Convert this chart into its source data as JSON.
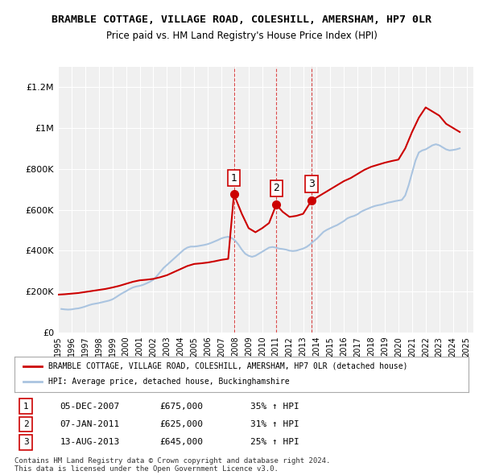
{
  "title": "BRAMBLE COTTAGE, VILLAGE ROAD, COLESHILL, AMERSHAM, HP7 0LR",
  "subtitle": "Price paid vs. HM Land Registry's House Price Index (HPI)",
  "background_color": "#ffffff",
  "plot_bg_color": "#f0f0f0",
  "grid_color": "#ffffff",
  "hpi_color": "#aac4e0",
  "price_color": "#cc0000",
  "x_start_year": 1995,
  "x_end_year": 2025,
  "ylim": [
    0,
    1300000
  ],
  "yticks": [
    0,
    200000,
    400000,
    600000,
    800000,
    1000000,
    1200000
  ],
  "ytick_labels": [
    "£0",
    "£200K",
    "£400K",
    "£600K",
    "£800K",
    "£1M",
    "£1.2M"
  ],
  "sales": [
    {
      "label": "1",
      "date": "05-DEC-2007",
      "year": 2007.92,
      "price": 675000,
      "pct": "35% ↑ HPI"
    },
    {
      "label": "2",
      "date": "07-JAN-2011",
      "year": 2011.03,
      "price": 625000,
      "pct": "31% ↑ HPI"
    },
    {
      "label": "3",
      "date": "13-AUG-2013",
      "year": 2013.62,
      "price": 645000,
      "pct": "25% ↑ HPI"
    }
  ],
  "legend_line1": "BRAMBLE COTTAGE, VILLAGE ROAD, COLESHILL, AMERSHAM, HP7 0LR (detached house)",
  "legend_line2": "HPI: Average price, detached house, Buckinghamshire",
  "footnote1": "Contains HM Land Registry data © Crown copyright and database right 2024.",
  "footnote2": "This data is licensed under the Open Government Licence v3.0.",
  "hpi_data": {
    "years": [
      1995.25,
      1995.5,
      1995.75,
      1996.0,
      1996.25,
      1996.5,
      1996.75,
      1997.0,
      1997.25,
      1997.5,
      1997.75,
      1998.0,
      1998.25,
      1998.5,
      1998.75,
      1999.0,
      1999.25,
      1999.5,
      1999.75,
      2000.0,
      2000.25,
      2000.5,
      2000.75,
      2001.0,
      2001.25,
      2001.5,
      2001.75,
      2002.0,
      2002.25,
      2002.5,
      2002.75,
      2003.0,
      2003.25,
      2003.5,
      2003.75,
      2004.0,
      2004.25,
      2004.5,
      2004.75,
      2005.0,
      2005.25,
      2005.5,
      2005.75,
      2006.0,
      2006.25,
      2006.5,
      2006.75,
      2007.0,
      2007.25,
      2007.5,
      2007.75,
      2008.0,
      2008.25,
      2008.5,
      2008.75,
      2009.0,
      2009.25,
      2009.5,
      2009.75,
      2010.0,
      2010.25,
      2010.5,
      2010.75,
      2011.0,
      2011.25,
      2011.5,
      2011.75,
      2012.0,
      2012.25,
      2012.5,
      2012.75,
      2013.0,
      2013.25,
      2013.5,
      2013.75,
      2014.0,
      2014.25,
      2014.5,
      2014.75,
      2015.0,
      2015.25,
      2015.5,
      2015.75,
      2016.0,
      2016.25,
      2016.5,
      2016.75,
      2017.0,
      2017.25,
      2017.5,
      2017.75,
      2018.0,
      2018.25,
      2018.5,
      2018.75,
      2019.0,
      2019.25,
      2019.5,
      2019.75,
      2020.0,
      2020.25,
      2020.5,
      2020.75,
      2021.0,
      2021.25,
      2021.5,
      2021.75,
      2022.0,
      2022.25,
      2022.5,
      2022.75,
      2023.0,
      2023.25,
      2023.5,
      2023.75,
      2024.0,
      2024.25,
      2024.5
    ],
    "values": [
      115000,
      113000,
      112000,
      113000,
      116000,
      118000,
      122000,
      127000,
      133000,
      138000,
      141000,
      144000,
      148000,
      152000,
      156000,
      162000,
      172000,
      183000,
      193000,
      202000,
      212000,
      220000,
      225000,
      228000,
      233000,
      240000,
      248000,
      258000,
      275000,
      295000,
      315000,
      330000,
      345000,
      360000,
      375000,
      390000,
      405000,
      415000,
      420000,
      420000,
      422000,
      425000,
      428000,
      432000,
      438000,
      445000,
      452000,
      460000,
      465000,
      468000,
      462000,
      450000,
      430000,
      405000,
      385000,
      375000,
      370000,
      375000,
      385000,
      395000,
      405000,
      415000,
      418000,
      415000,
      410000,
      408000,
      405000,
      400000,
      398000,
      400000,
      405000,
      410000,
      418000,
      430000,
      445000,
      458000,
      475000,
      492000,
      502000,
      510000,
      518000,
      525000,
      535000,
      545000,
      558000,
      565000,
      570000,
      578000,
      590000,
      598000,
      605000,
      612000,
      618000,
      622000,
      625000,
      630000,
      635000,
      638000,
      642000,
      645000,
      648000,
      670000,
      720000,
      780000,
      840000,
      880000,
      890000,
      895000,
      905000,
      915000,
      920000,
      915000,
      905000,
      895000,
      890000,
      892000,
      895000,
      900000
    ]
  },
  "price_line_data": {
    "years": [
      1995.0,
      1995.5,
      1996.0,
      1996.5,
      1997.0,
      1997.5,
      1998.0,
      1998.5,
      1999.0,
      1999.5,
      2000.0,
      2000.5,
      2001.0,
      2001.5,
      2002.0,
      2002.5,
      2003.0,
      2003.5,
      2004.0,
      2004.5,
      2005.0,
      2005.5,
      2006.0,
      2006.5,
      2007.0,
      2007.5,
      2007.92,
      2008.5,
      2009.0,
      2009.5,
      2010.0,
      2010.5,
      2011.03,
      2011.5,
      2012.0,
      2012.5,
      2013.0,
      2013.62,
      2014.0,
      2014.5,
      2015.0,
      2015.5,
      2016.0,
      2016.5,
      2017.0,
      2017.5,
      2018.0,
      2018.5,
      2019.0,
      2019.5,
      2020.0,
      2020.5,
      2021.0,
      2021.5,
      2022.0,
      2022.5,
      2023.0,
      2023.5,
      2024.0,
      2024.5
    ],
    "values": [
      185000,
      187000,
      190000,
      193000,
      198000,
      203000,
      208000,
      213000,
      220000,
      228000,
      238000,
      248000,
      255000,
      258000,
      262000,
      270000,
      280000,
      295000,
      310000,
      325000,
      335000,
      338000,
      342000,
      348000,
      355000,
      360000,
      675000,
      580000,
      510000,
      490000,
      510000,
      535000,
      625000,
      590000,
      565000,
      570000,
      580000,
      645000,
      660000,
      680000,
      700000,
      720000,
      740000,
      755000,
      775000,
      795000,
      810000,
      820000,
      830000,
      838000,
      845000,
      900000,
      980000,
      1050000,
      1100000,
      1080000,
      1060000,
      1020000,
      1000000,
      980000
    ]
  }
}
